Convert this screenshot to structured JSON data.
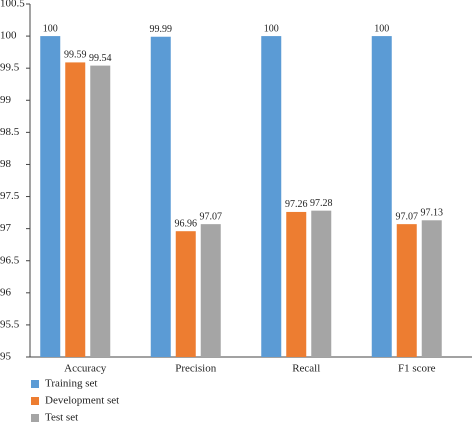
{
  "chart_data": {
    "type": "bar",
    "categories": [
      "Accuracy",
      "Precision",
      "Recall",
      "F1 score"
    ],
    "series": [
      {
        "name": "Training set",
        "color": "#5b9bd5",
        "values": [
          100,
          99.99,
          100,
          100
        ]
      },
      {
        "name": "Development set",
        "color": "#ed7d31",
        "values": [
          99.59,
          96.96,
          97.26,
          97.07
        ]
      },
      {
        "name": "Test set",
        "color": "#a5a5a5",
        "values": [
          99.54,
          97.07,
          97.28,
          97.13
        ]
      }
    ],
    "ylim": [
      95,
      100.5
    ],
    "yticks": [
      95,
      95.5,
      96,
      96.5,
      97,
      97.5,
      98,
      98.5,
      99,
      99.5,
      100,
      100.5
    ],
    "grid": false,
    "legend": "bottom-left"
  }
}
